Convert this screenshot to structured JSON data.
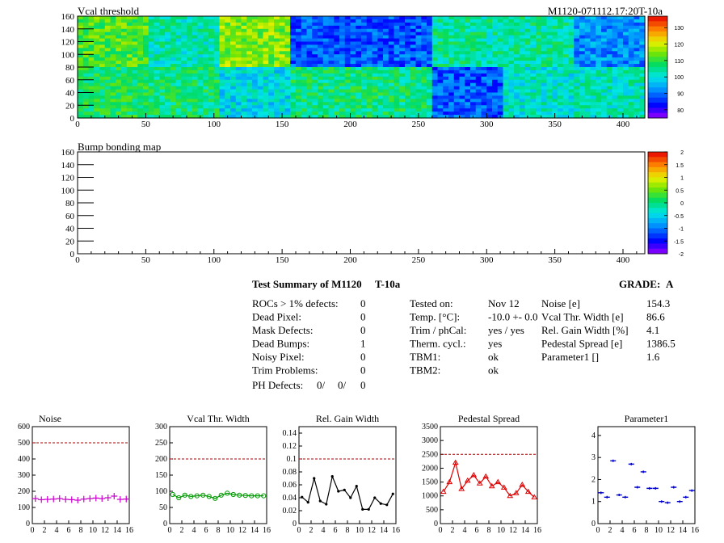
{
  "header": {
    "top_title": "Vcal threshold",
    "module_id": "M1120-071112.17:20T-10a",
    "bump_title": "Bump bonding map"
  },
  "maps": {
    "x_ticks": [
      0,
      50,
      100,
      150,
      200,
      250,
      300,
      350,
      400
    ],
    "y_ticks": [
      0,
      20,
      40,
      60,
      80,
      100,
      120,
      140,
      160
    ],
    "x_range": [
      0,
      416
    ],
    "y_range": [
      0,
      160
    ],
    "vcal_palette_ticks": [
      80,
      90,
      100,
      110,
      120,
      130
    ],
    "vcal_palette_range": [
      75,
      137
    ],
    "bump_palette_ticks": [
      "2",
      "1.5",
      "1",
      "0.5",
      "0",
      "-0.5",
      "-1",
      "-1.5",
      "-2"
    ],
    "bump_palette_range": [
      -2,
      2
    ]
  },
  "summary": {
    "title": "Test Summary of M1120",
    "test": "T-10a",
    "grade_label": "GRADE:",
    "grade": "A",
    "left": [
      {
        "label": "ROCs > 1% defects:",
        "value": "0"
      },
      {
        "label": "Dead Pixel:",
        "value": "0"
      },
      {
        "label": "Mask Defects:",
        "value": "0"
      },
      {
        "label": "Dead Bumps:",
        "value": "1"
      },
      {
        "label": "Noisy Pixel:",
        "value": "0"
      },
      {
        "label": "Trim Problems:",
        "value": "0"
      }
    ],
    "ph_label": "PH Defects:",
    "ph_values": [
      "0/",
      "0/",
      "0"
    ],
    "ph_colors": [
      "#000000",
      "#ff0000",
      "#0000ff"
    ],
    "middle": [
      {
        "label": "Tested on:",
        "value": "Nov 12"
      },
      {
        "label": "Temp. [°C]:",
        "value": "-10.0 +- 0.0"
      },
      {
        "label": "Trim / phCal:",
        "value": "yes / yes"
      },
      {
        "label": "Therm. cycl.:",
        "value": "yes"
      },
      {
        "label": "TBM1:",
        "value": "ok"
      },
      {
        "label": "TBM2:",
        "value": "ok"
      }
    ],
    "right": [
      {
        "label": "Noise [e]",
        "value": "154.3"
      },
      {
        "label": "Vcal Thr. Width [e]",
        "value": "86.6"
      },
      {
        "label": "Rel. Gain Width [%]",
        "value": "4.1"
      },
      {
        "label": "Pedestal Spread [e]",
        "value": "1386.5"
      },
      {
        "label": "Parameter1 []",
        "value": "1.6"
      }
    ]
  },
  "chart_data": [
    {
      "type": "heatmap",
      "title": "Vcal threshold",
      "x_range": [
        0,
        416
      ],
      "y_range": [
        0,
        160
      ],
      "z_range": [
        75,
        137
      ],
      "roc_grid": {
        "columns": 8,
        "rows": 2,
        "cols_width": 52,
        "rows_height": 80
      },
      "roc_means_top_row": [
        112,
        103,
        115,
        88,
        88,
        104,
        104,
        92
      ],
      "roc_means_bottom_row": [
        108,
        106,
        99,
        106,
        106,
        88,
        101,
        102
      ]
    },
    {
      "type": "heatmap",
      "title": "Bump bonding map",
      "x_range": [
        0,
        416
      ],
      "y_range": [
        0,
        160
      ],
      "z_range": [
        -2,
        2
      ]
    },
    {
      "type": "line",
      "title": "Noise",
      "x_ticks": [
        0,
        2,
        4,
        6,
        8,
        10,
        12,
        14,
        16
      ],
      "y_ticks": [
        0,
        100,
        200,
        300,
        400,
        500,
        600
      ],
      "xlim": [
        0,
        16
      ],
      "ylim": [
        0,
        600
      ],
      "threshold": 500,
      "color": "#cc00cc",
      "marker": "cross",
      "x": [
        0.5,
        1.5,
        2.5,
        3.5,
        4.5,
        5.5,
        6.5,
        7.5,
        8.5,
        9.5,
        10.5,
        11.5,
        12.5,
        13.5,
        14.5,
        15.5
      ],
      "values": [
        155,
        148,
        150,
        152,
        155,
        150,
        148,
        145,
        152,
        155,
        158,
        155,
        160,
        170,
        150,
        152
      ],
      "draw_line": false
    },
    {
      "type": "line",
      "title": "Vcal Thr. Width",
      "x_ticks": [
        0,
        2,
        4,
        6,
        8,
        10,
        12,
        14,
        16
      ],
      "y_ticks": [
        0,
        50,
        100,
        150,
        200,
        250,
        300
      ],
      "xlim": [
        0,
        16
      ],
      "ylim": [
        0,
        300
      ],
      "threshold": 200,
      "color": "#009900",
      "marker": "circle",
      "x": [
        0.5,
        1.5,
        2.5,
        3.5,
        4.5,
        5.5,
        6.5,
        7.5,
        8.5,
        9.5,
        10.5,
        11.5,
        12.5,
        13.5,
        14.5,
        15.5
      ],
      "values": [
        90,
        80,
        88,
        84,
        86,
        88,
        84,
        78,
        88,
        94,
        90,
        88,
        87,
        86,
        86,
        86
      ],
      "draw_line": true
    },
    {
      "type": "line",
      "title": "Rel. Gain Width",
      "x_ticks": [
        0,
        2,
        4,
        6,
        8,
        10,
        12,
        14,
        16
      ],
      "y_ticks": [
        0,
        0.02,
        0.04,
        0.06,
        0.08,
        0.1,
        0.12,
        0.14
      ],
      "y_tick_labels": [
        "0",
        "0.02",
        "0.04",
        "0.06",
        "0.08",
        "0.1",
        "0.12",
        "0.14"
      ],
      "xlim": [
        0,
        16
      ],
      "ylim": [
        0,
        0.15
      ],
      "threshold": 0.1,
      "color": "#000000",
      "marker": "dot",
      "x": [
        0.5,
        1.5,
        2.5,
        3.5,
        4.5,
        5.5,
        6.5,
        7.5,
        8.5,
        9.5,
        10.5,
        11.5,
        12.5,
        13.5,
        14.5,
        15.5
      ],
      "values": [
        0.041,
        0.033,
        0.07,
        0.035,
        0.03,
        0.073,
        0.05,
        0.052,
        0.04,
        0.058,
        0.022,
        0.022,
        0.04,
        0.031,
        0.029,
        0.046
      ],
      "draw_line": true
    },
    {
      "type": "line",
      "title": "Pedestal Spread",
      "x_ticks": [
        0,
        2,
        4,
        6,
        8,
        10,
        12,
        14,
        16
      ],
      "y_ticks": [
        0,
        500,
        1000,
        1500,
        2000,
        2500,
        3000,
        3500
      ],
      "xlim": [
        0,
        16
      ],
      "ylim": [
        0,
        3500
      ],
      "threshold": 2500,
      "color": "#dd0000",
      "marker": "triangle",
      "x": [
        0.5,
        1.5,
        2.5,
        3.5,
        4.5,
        5.5,
        6.5,
        7.5,
        8.5,
        9.5,
        10.5,
        11.5,
        12.5,
        13.5,
        14.5,
        15.5
      ],
      "values": [
        1150,
        1500,
        2200,
        1250,
        1550,
        1750,
        1450,
        1700,
        1350,
        1500,
        1300,
        1000,
        1100,
        1400,
        1150,
        950
      ],
      "draw_line": true
    },
    {
      "type": "scatter",
      "title": "Parameter1",
      "x_ticks": [
        0,
        2,
        4,
        6,
        8,
        10,
        12,
        14,
        16
      ],
      "y_ticks": [
        0,
        1,
        2,
        3,
        4
      ],
      "xlim": [
        0,
        16
      ],
      "ylim": [
        0,
        4.4
      ],
      "color": "#0000cc",
      "marker": "hbar",
      "x": [
        0.5,
        1.5,
        2.5,
        3.5,
        4.5,
        5.5,
        6.5,
        7.5,
        8.5,
        9.5,
        10.5,
        11.5,
        12.5,
        13.5,
        14.5,
        15.5
      ],
      "values": [
        1.4,
        1.2,
        2.85,
        1.3,
        1.2,
        2.7,
        1.65,
        2.35,
        1.6,
        1.6,
        1.0,
        0.95,
        1.65,
        1.0,
        1.2,
        1.5
      ],
      "draw_line": false
    }
  ]
}
